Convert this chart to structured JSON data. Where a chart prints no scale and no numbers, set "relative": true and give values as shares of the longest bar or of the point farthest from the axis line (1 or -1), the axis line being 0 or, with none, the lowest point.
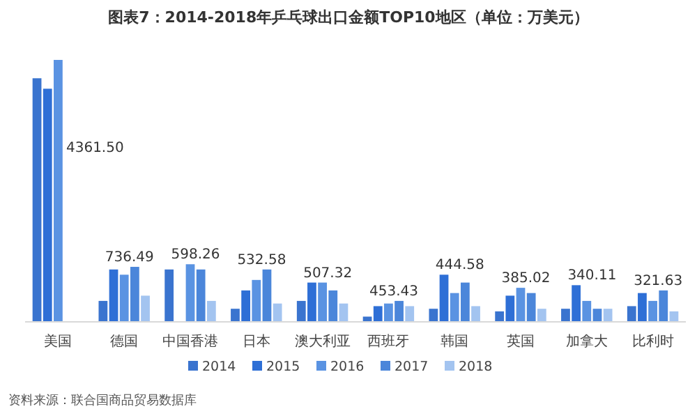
{
  "chart_data": {
    "type": "bar",
    "title": "图表7：2014-2018年乒乓球出口金额TOP10地区（单位：万美元）",
    "relative": true,
    "legend": "bottom",
    "categories": [
      "美国",
      "德国",
      "中国香港",
      "日本",
      "澳大利亚",
      "西班牙",
      "韩国",
      "英国",
      "加拿大",
      "比利时"
    ],
    "series": [
      {
        "name": "2014",
        "color": "#3a74cf",
        "values": [
          0.93,
          0.08,
          0.2,
          0.05,
          0.08,
          0.02,
          0.05,
          0.04,
          0.05,
          0.06
        ]
      },
      {
        "name": "2015",
        "color": "#2e6fd6",
        "values": [
          0.89,
          0.2,
          null,
          0.12,
          0.15,
          0.06,
          0.18,
          0.1,
          0.14,
          0.11
        ]
      },
      {
        "name": "2016",
        "color": "#5a93e2",
        "values": [
          1.0,
          0.18,
          0.22,
          0.16,
          0.15,
          0.07,
          0.11,
          0.13,
          0.08,
          0.08
        ]
      },
      {
        "name": "2017",
        "color": "#4b86da",
        "values": [
          null,
          0.21,
          0.2,
          0.2,
          0.12,
          0.08,
          0.15,
          0.11,
          0.05,
          0.12
        ]
      },
      {
        "name": "2018",
        "color": "#a3c4f0",
        "values": [
          null,
          0.1,
          0.08,
          0.07,
          0.07,
          0.06,
          0.06,
          0.05,
          0.05,
          0.04
        ]
      }
    ],
    "annotations": [
      "资料来源：联合国商品贸易数据库",
      "4361.50",
      "736.49",
      "598.26",
      "532.58",
      "507.32",
      "453.43",
      "444.58",
      "385.02",
      "340.11",
      "321.63"
    ]
  }
}
